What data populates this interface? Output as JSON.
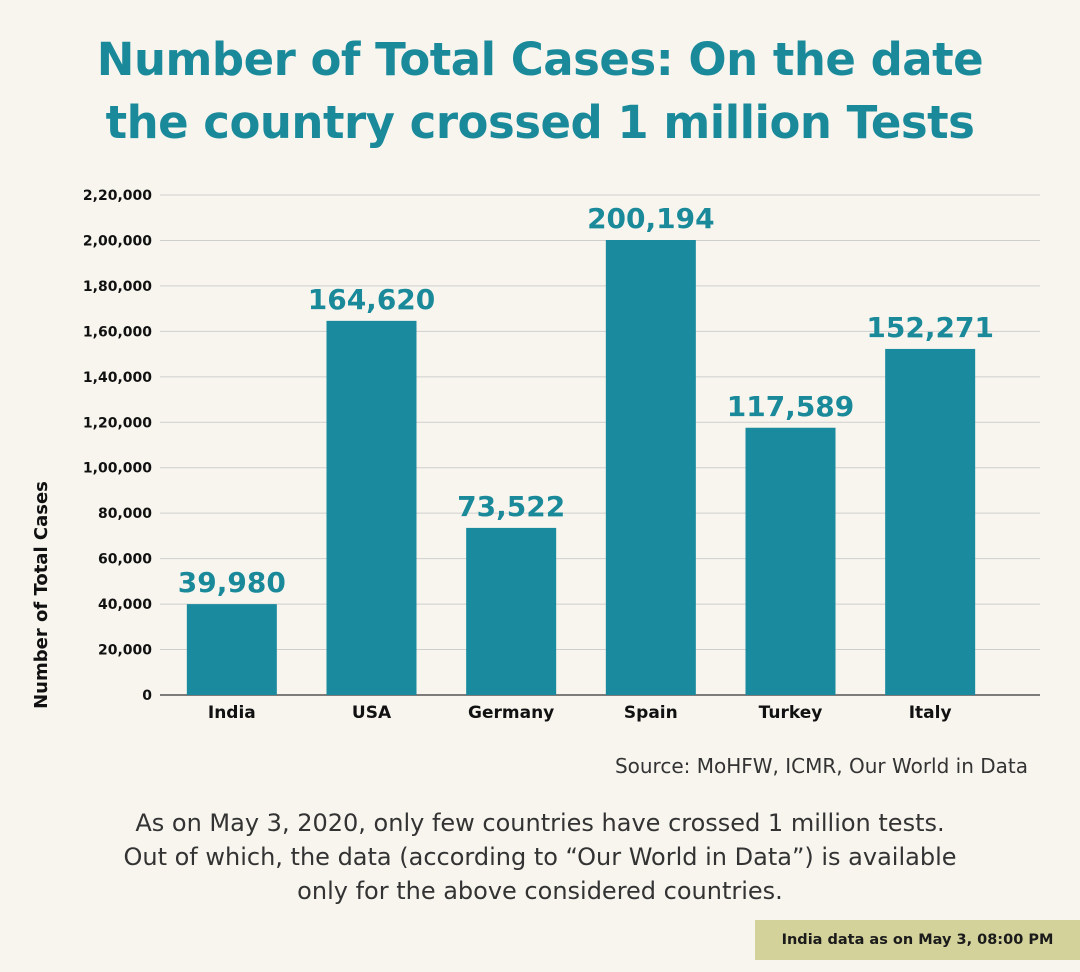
{
  "header": {
    "title_line1": "Number of Total Cases: On the date",
    "title_line2": "the country crossed 1 million Tests"
  },
  "chart_data": {
    "type": "bar",
    "title": "Number of Total Cases: On the date the country crossed 1 million Tests",
    "xlabel": "",
    "ylabel": "Number of Total Cases",
    "categories": [
      "India",
      "USA",
      "Germany",
      "Spain",
      "Turkey",
      "Italy"
    ],
    "values": [
      39980,
      164620,
      73522,
      200194,
      117589,
      152271
    ],
    "value_labels": [
      "39,980",
      "164,620",
      "73,522",
      "200,194",
      "117,589",
      "152,271"
    ],
    "ylim": [
      0,
      220000
    ],
    "yticks": [
      0,
      20000,
      40000,
      60000,
      80000,
      100000,
      120000,
      140000,
      160000,
      180000,
      200000,
      220000
    ],
    "ytick_labels": [
      "0",
      "20,000",
      "40,000",
      "60,000",
      "80,000",
      "1,00,000",
      "1,20,000",
      "1,40,000",
      "1,60,000",
      "1,80,000",
      "2,00,000",
      "2,20,000"
    ],
    "grid": true,
    "colors": {
      "bar": "#1a8a9f",
      "label": "#1a8a9b",
      "grid": "#cfcfcf",
      "axis": "#555555"
    }
  },
  "footer": {
    "source": "Source: MoHFW, ICMR, Our World in Data",
    "note_line1": "As on May 3, 2020, only few countries have crossed 1 million tests.",
    "note_line2": "Out of  which, the data (according to “Our World in Data”) is available",
    "note_line3": "only for the above considered countries.",
    "stamp": "India data as on May 3, 08:00 PM"
  }
}
